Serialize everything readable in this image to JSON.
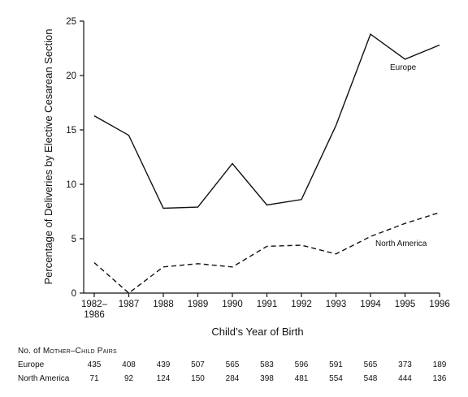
{
  "chart_data": {
    "type": "line",
    "categories": [
      "1982–1986",
      "1987",
      "1988",
      "1989",
      "1990",
      "1991",
      "1992",
      "1993",
      "1994",
      "1995",
      "1996"
    ],
    "series": [
      {
        "name": "Europe",
        "style": "solid",
        "values": [
          16.3,
          14.5,
          7.8,
          7.9,
          11.9,
          8.1,
          8.6,
          15.4,
          23.8,
          21.5,
          22.8
        ]
      },
      {
        "name": "North America",
        "style": "dashed",
        "values": [
          2.8,
          0.0,
          2.4,
          2.7,
          2.4,
          4.3,
          4.4,
          3.6,
          5.2,
          6.4,
          7.4
        ]
      }
    ],
    "xlabel": "Child’s Year of Birth",
    "ylabel": "Percentage of Deliveries by Elective Cesarean Section",
    "ylim": [
      0,
      25
    ],
    "yticks": [
      "0",
      "5",
      "10",
      "15",
      "20",
      "25"
    ],
    "xticks": [
      [
        "1982–",
        "1986"
      ],
      [
        "1987"
      ],
      [
        "1988"
      ],
      [
        "1989"
      ],
      [
        "1990"
      ],
      [
        "1991"
      ],
      [
        "1992"
      ],
      [
        "1993"
      ],
      [
        "1994"
      ],
      [
        "1995"
      ],
      [
        "1996"
      ]
    ],
    "grid": false,
    "legend": "inline labels"
  },
  "table": {
    "caption_first": "No. of",
    "caption_rest": " Mother–Child Pairs",
    "rows": [
      {
        "label": "Europe",
        "values": [
          "435",
          "408",
          "439",
          "507",
          "565",
          "583",
          "596",
          "591",
          "565",
          "373",
          "189"
        ]
      },
      {
        "label": "North America",
        "values": [
          "71",
          "92",
          "124",
          "150",
          "284",
          "398",
          "481",
          "554",
          "548",
          "444",
          "136"
        ]
      }
    ]
  },
  "colors": {
    "line": "#111111",
    "background": "#ffffff"
  }
}
